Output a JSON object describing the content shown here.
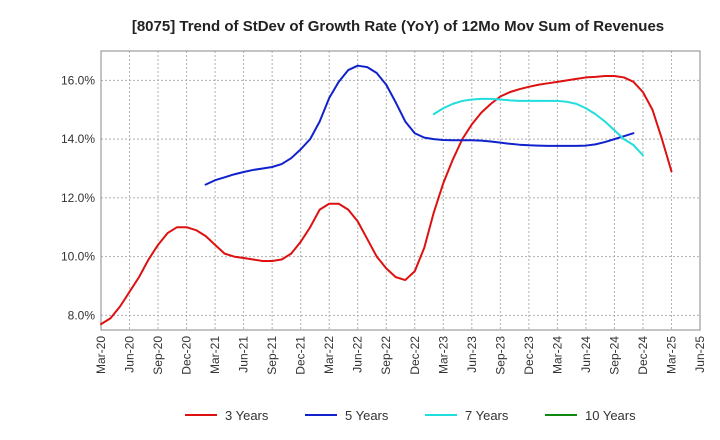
{
  "chart_data": {
    "type": "line",
    "title": "[8075]  Trend of StDev of Growth Rate (YoY) of 12Mo Mov Sum of Revenues",
    "xlabel": "",
    "ylabel": "",
    "ylim": [
      7.5,
      17.0
    ],
    "yticks": [
      {
        "value": 8.0,
        "label": "8.0%"
      },
      {
        "value": 10.0,
        "label": "10.0%"
      },
      {
        "value": 12.0,
        "label": "12.0%"
      },
      {
        "value": 14.0,
        "label": "14.0%"
      },
      {
        "value": 16.0,
        "label": "16.0%"
      }
    ],
    "xticks": [
      {
        "value": 0,
        "label": "Mar-20"
      },
      {
        "value": 3,
        "label": "Jun-20"
      },
      {
        "value": 6,
        "label": "Sep-20"
      },
      {
        "value": 9,
        "label": "Dec-20"
      },
      {
        "value": 12,
        "label": "Mar-21"
      },
      {
        "value": 15,
        "label": "Jun-21"
      },
      {
        "value": 18,
        "label": "Sep-21"
      },
      {
        "value": 21,
        "label": "Dec-21"
      },
      {
        "value": 24,
        "label": "Mar-22"
      },
      {
        "value": 27,
        "label": "Jun-22"
      },
      {
        "value": 30,
        "label": "Sep-22"
      },
      {
        "value": 33,
        "label": "Dec-22"
      },
      {
        "value": 36,
        "label": "Mar-23"
      },
      {
        "value": 39,
        "label": "Jun-23"
      },
      {
        "value": 42,
        "label": "Sep-23"
      },
      {
        "value": 45,
        "label": "Dec-23"
      },
      {
        "value": 48,
        "label": "Mar-24"
      },
      {
        "value": 51,
        "label": "Jun-24"
      },
      {
        "value": 54,
        "label": "Sep-24"
      },
      {
        "value": 57,
        "label": "Dec-24"
      },
      {
        "value": 60,
        "label": "Mar-25"
      },
      {
        "value": 63,
        "label": "Jun-25"
      }
    ],
    "xlim": [
      0,
      63
    ],
    "grid": true,
    "legend_position": "bottom",
    "series": [
      {
        "name": "3 Years",
        "color": "#dd1111",
        "x_start": 0,
        "values": [
          7.7,
          7.9,
          8.3,
          8.8,
          9.3,
          9.9,
          10.4,
          10.8,
          11.0,
          11.0,
          10.9,
          10.7,
          10.4,
          10.1,
          10.0,
          9.95,
          9.9,
          9.85,
          9.85,
          9.9,
          10.1,
          10.5,
          11.0,
          11.6,
          11.8,
          11.8,
          11.6,
          11.2,
          10.6,
          10.0,
          9.6,
          9.3,
          9.2,
          9.5,
          10.3,
          11.5,
          12.5,
          13.3,
          14.0,
          14.5,
          14.9,
          15.2,
          15.45,
          15.6,
          15.7,
          15.78,
          15.85,
          15.9,
          15.95,
          16.0,
          16.05,
          16.1,
          16.12,
          16.15,
          16.15,
          16.1,
          15.95,
          15.6,
          15.0,
          14.0,
          12.9
        ]
      },
      {
        "name": "5 Years",
        "color": "#1122cc",
        "x_start": 11,
        "values": [
          12.45,
          12.6,
          12.7,
          12.8,
          12.88,
          12.95,
          13.0,
          13.05,
          13.15,
          13.35,
          13.65,
          14.0,
          14.6,
          15.4,
          15.95,
          16.35,
          16.5,
          16.45,
          16.25,
          15.85,
          15.25,
          14.6,
          14.2,
          14.05,
          14.0,
          13.97,
          13.96,
          13.96,
          13.96,
          13.95,
          13.92,
          13.88,
          13.84,
          13.81,
          13.79,
          13.78,
          13.77,
          13.77,
          13.77,
          13.77,
          13.78,
          13.82,
          13.9,
          14.0,
          14.1,
          14.2
        ]
      },
      {
        "name": "7 Years",
        "color": "#22dddd",
        "x_start": 35,
        "values": [
          14.85,
          15.05,
          15.2,
          15.3,
          15.35,
          15.37,
          15.37,
          15.35,
          15.32,
          15.3,
          15.3,
          15.3,
          15.3,
          15.3,
          15.27,
          15.2,
          15.05,
          14.85,
          14.6,
          14.3,
          14.0,
          13.8,
          13.45
        ]
      },
      {
        "name": "10 Years",
        "color": "#118811",
        "x_start": null,
        "values": []
      }
    ]
  }
}
